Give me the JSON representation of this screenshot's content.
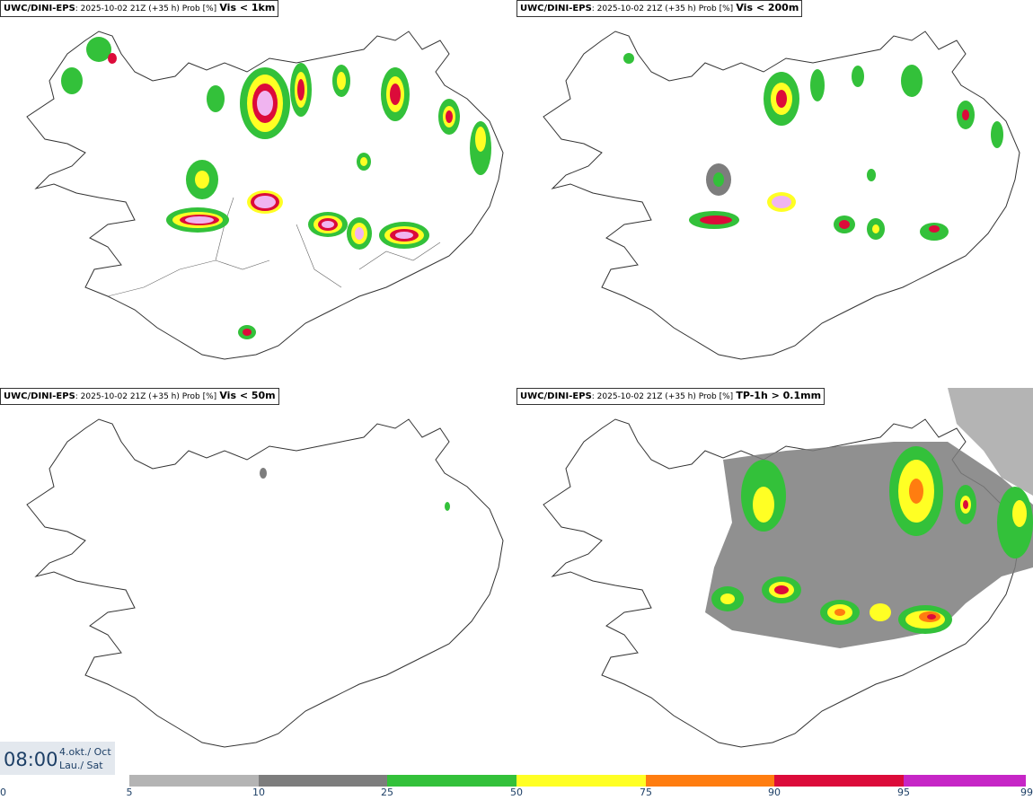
{
  "panels": [
    {
      "model": "UWC/DINI-EPS",
      "meta": ": 2025-10-02 21Z (+35 h) Prob [%]",
      "field": "Vis < 1km"
    },
    {
      "model": "UWC/DINI-EPS",
      "meta": ": 2025-10-02 21Z (+35 h) Prob [%]",
      "field": "Vis < 200m"
    },
    {
      "model": "UWC/DINI-EPS",
      "meta": ": 2025-10-02 21Z (+35 h) Prob [%]",
      "field": "Vis < 50m"
    },
    {
      "model": "UWC/DINI-EPS",
      "meta": ": 2025-10-02 21Z (+35 h) Prob [%]",
      "field": "TP-1h > 0.1mm"
    }
  ],
  "valid_time": {
    "time": "08:00",
    "date_line1": "4.okt./ Oct",
    "date_line2": "Lau./ Sat"
  },
  "colorbar": {
    "labels": [
      "0",
      "5",
      "10",
      "25",
      "50",
      "75",
      "90",
      "95",
      "99"
    ],
    "colors": [
      "#ffffff",
      "#b4b4b4",
      "#7d7d7d",
      "#33c13a",
      "#ffff24",
      "#ff7d10",
      "#dc0b3a",
      "#c626c6",
      "#f0b4f0"
    ]
  }
}
